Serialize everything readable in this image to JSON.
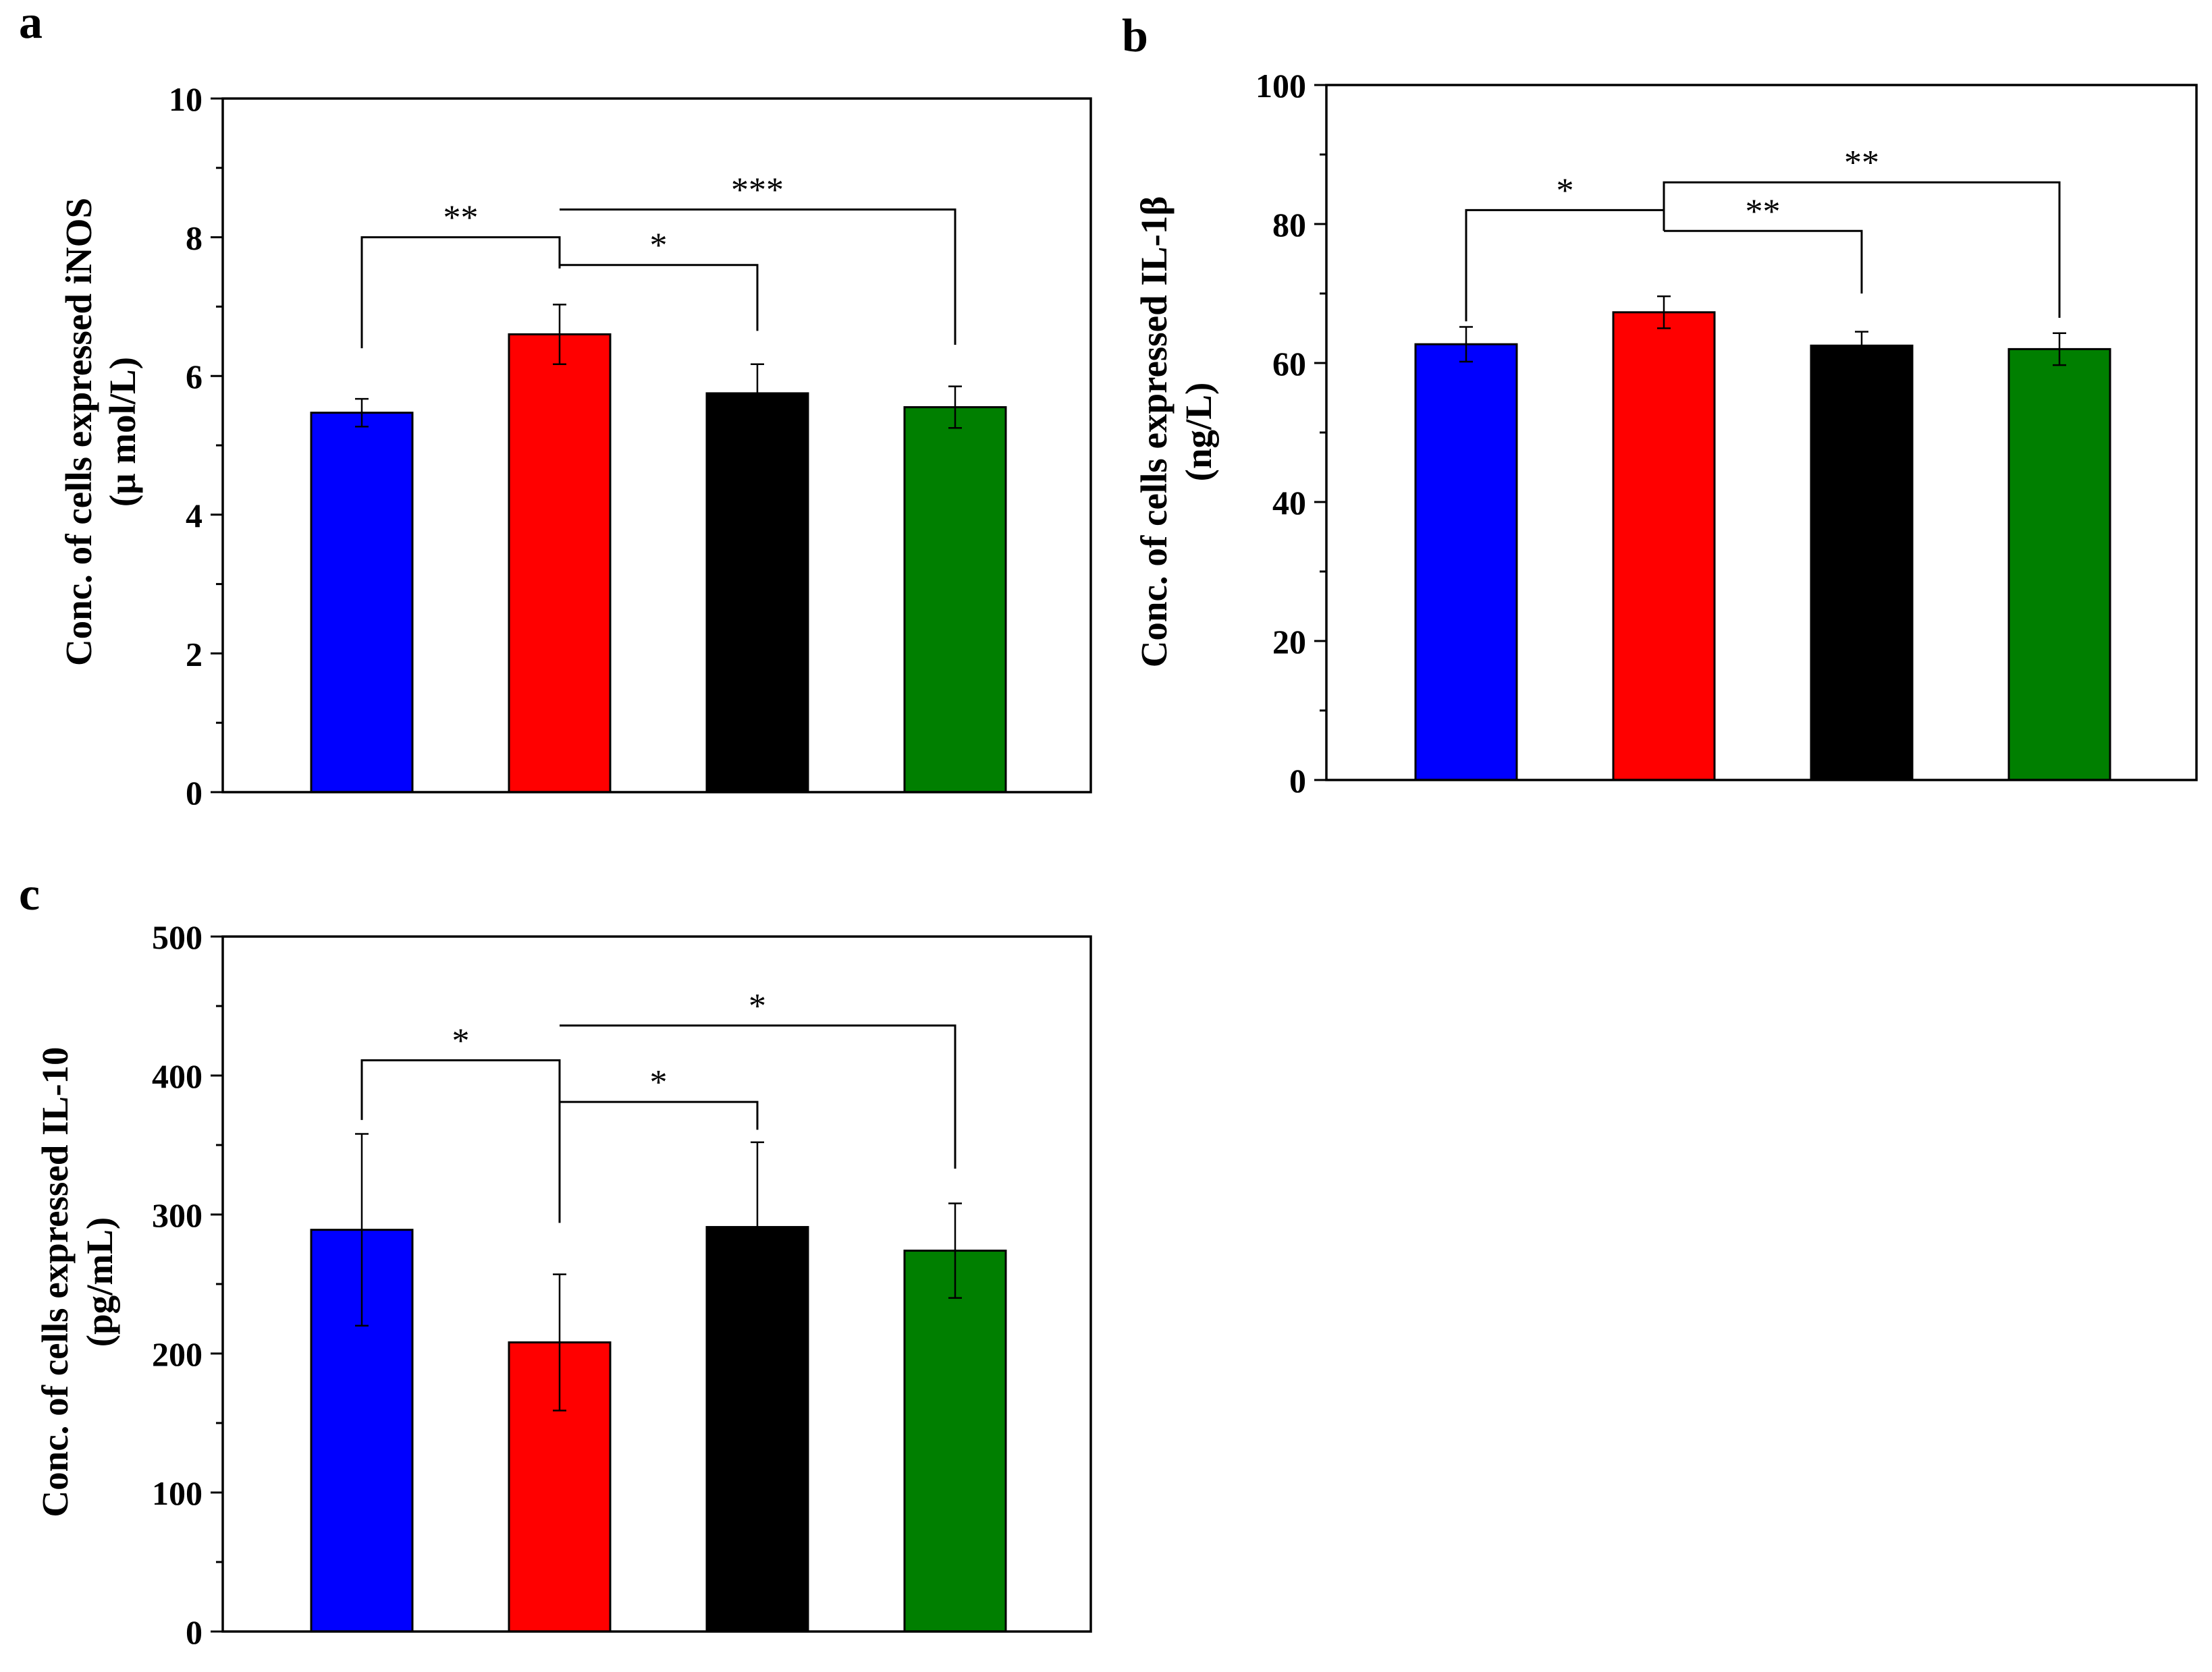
{
  "panel_labels": [
    "a",
    "b",
    "c"
  ],
  "chart_data": [
    {
      "id": "a",
      "type": "bar",
      "title": "",
      "xlabel": "",
      "ylabel_lines": [
        "Conc. of cells expressed iNOS",
        "(μ mol/L)"
      ],
      "ylim": [
        0,
        10
      ],
      "ytick_labels": [
        "0",
        "2",
        "4",
        "6",
        "8",
        "10"
      ],
      "ytick_values": [
        0,
        2,
        4,
        6,
        8,
        10
      ],
      "minor_step": 1,
      "grid": false,
      "legend": "none",
      "bars": [
        {
          "value": 5.47,
          "error": 0.2,
          "color": "#0000ff"
        },
        {
          "value": 6.6,
          "error": 0.43,
          "color": "#ff0000"
        },
        {
          "value": 5.75,
          "error": 0.42,
          "color": "#000000"
        },
        {
          "value": 5.55,
          "error": 0.3,
          "color": "#007f00"
        }
      ],
      "brackets": [
        {
          "from": 0,
          "to": 1,
          "level": 8.0,
          "from_level": 6.4,
          "to_level": 7.55,
          "label": "**"
        },
        {
          "from": 1,
          "to": 2,
          "level": 7.6,
          "from_level": 7.6,
          "to_level": 6.65,
          "label": "*"
        },
        {
          "from": 1,
          "to": 3,
          "level": 8.4,
          "from_level": 8.4,
          "to_level": 6.45,
          "label": "***"
        }
      ]
    },
    {
      "id": "b",
      "type": "bar",
      "title": "",
      "xlabel": "",
      "ylabel_lines": [
        "Conc. of cells expressed IL-1β",
        "(ng/L)"
      ],
      "ylim": [
        0,
        100
      ],
      "ytick_labels": [
        "0",
        "20",
        "40",
        "60",
        "80",
        "100"
      ],
      "ytick_values": [
        0,
        20,
        40,
        60,
        80,
        100
      ],
      "minor_step": 10,
      "grid": false,
      "legend": "none",
      "bars": [
        {
          "value": 62.7,
          "error": 2.5,
          "color": "#0000ff"
        },
        {
          "value": 67.3,
          "error": 2.3,
          "color": "#ff0000"
        },
        {
          "value": 62.5,
          "error": 2.0,
          "color": "#000000"
        },
        {
          "value": 62.0,
          "error": 2.3,
          "color": "#007f00"
        }
      ],
      "brackets": [
        {
          "from": 0,
          "to": 1,
          "level": 82.0,
          "from_level": 66.0,
          "to_level": 82.0,
          "label": "*"
        },
        {
          "from": 1,
          "to": 2,
          "level": 79.0,
          "from_level": 79.0,
          "to_level": 70.0,
          "label": "**"
        },
        {
          "from": 1,
          "to": 3,
          "level": 86.0,
          "from_level": 79.0,
          "to_level": 66.5,
          "label": "**"
        }
      ]
    },
    {
      "id": "c",
      "type": "bar",
      "title": "",
      "xlabel": "",
      "ylabel_lines": [
        "Conc. of cells expressed IL-10",
        "(pg/mL)"
      ],
      "ylim": [
        0,
        500
      ],
      "ytick_labels": [
        "0",
        "100",
        "200",
        "300",
        "400",
        "500"
      ],
      "ytick_values": [
        0,
        100,
        200,
        300,
        400,
        500
      ],
      "minor_step": 50,
      "grid": false,
      "legend": "none",
      "bars": [
        {
          "value": 289,
          "error": 69,
          "color": "#0000ff"
        },
        {
          "value": 208,
          "error": 49,
          "color": "#ff0000"
        },
        {
          "value": 291,
          "error": 61,
          "color": "#000000"
        },
        {
          "value": 274,
          "error": 34,
          "color": "#007f00"
        }
      ],
      "brackets": [
        {
          "from": 0,
          "to": 1,
          "level": 411,
          "from_level": 368,
          "to_level": 294,
          "label": "*"
        },
        {
          "from": 1,
          "to": 2,
          "level": 381,
          "from_level": 381,
          "to_level": 361,
          "label": "*"
        },
        {
          "from": 1,
          "to": 3,
          "level": 436,
          "from_level": 436,
          "to_level": 333,
          "label": "*"
        }
      ]
    }
  ]
}
